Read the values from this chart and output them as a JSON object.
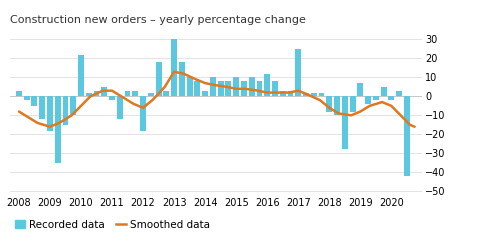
{
  "title": "Construction new orders – yearly percentage change",
  "bar_data": {
    "x": [
      2008.0,
      2008.25,
      2008.5,
      2008.75,
      2009.0,
      2009.25,
      2009.5,
      2009.75,
      2010.0,
      2010.25,
      2010.5,
      2010.75,
      2011.0,
      2011.25,
      2011.5,
      2011.75,
      2012.0,
      2012.25,
      2012.5,
      2012.75,
      2013.0,
      2013.25,
      2013.5,
      2013.75,
      2014.0,
      2014.25,
      2014.5,
      2014.75,
      2015.0,
      2015.25,
      2015.5,
      2015.75,
      2016.0,
      2016.25,
      2016.5,
      2016.75,
      2017.0,
      2017.25,
      2017.5,
      2017.75,
      2018.0,
      2018.25,
      2018.5,
      2018.75,
      2019.0,
      2019.25,
      2019.5,
      2019.75,
      2020.0,
      2020.25,
      2020.5
    ],
    "values": [
      3,
      -2,
      -5,
      -12,
      -18,
      -35,
      -15,
      -10,
      22,
      2,
      3,
      5,
      -2,
      -12,
      3,
      3,
      -18,
      2,
      18,
      3,
      30,
      18,
      10,
      8,
      3,
      10,
      8,
      8,
      10,
      8,
      10,
      8,
      12,
      8,
      3,
      3,
      25,
      2,
      2,
      2,
      -8,
      -10,
      -28,
      -8,
      7,
      -4,
      -2,
      5,
      -2,
      3,
      -42
    ]
  },
  "smooth_data": {
    "x": [
      2008.0,
      2008.3,
      2008.6,
      2009.0,
      2009.3,
      2009.7,
      2010.0,
      2010.3,
      2010.7,
      2011.0,
      2011.3,
      2011.7,
      2012.0,
      2012.3,
      2012.7,
      2013.0,
      2013.3,
      2013.7,
      2014.0,
      2014.3,
      2014.7,
      2015.0,
      2015.3,
      2015.7,
      2016.0,
      2016.3,
      2016.7,
      2017.0,
      2017.3,
      2017.7,
      2018.0,
      2018.3,
      2018.7,
      2019.0,
      2019.3,
      2019.7,
      2020.0,
      2020.3,
      2020.6,
      2020.75
    ],
    "values": [
      -8,
      -11,
      -14,
      -16,
      -14,
      -10,
      -5,
      0,
      3,
      3,
      0,
      -4,
      -6,
      -2,
      5,
      13,
      12,
      9,
      7,
      6,
      5,
      4,
      4,
      3,
      2,
      2,
      2,
      3,
      1,
      -2,
      -6,
      -9,
      -10,
      -8,
      -5,
      -3,
      -5,
      -10,
      -15,
      -16
    ]
  },
  "bar_color": "#5bc8e0",
  "smooth_color": "#e07820",
  "smooth_linewidth": 1.8,
  "ylim": [
    -52,
    35
  ],
  "yticks": [
    -50,
    -40,
    -30,
    -20,
    -10,
    0,
    10,
    20,
    30
  ],
  "xlim": [
    2007.7,
    2021.0
  ],
  "xticks": [
    2008,
    2009,
    2010,
    2011,
    2012,
    2013,
    2014,
    2015,
    2016,
    2017,
    2018,
    2019,
    2020
  ],
  "legend_labels": [
    "Recorded data",
    "Smoothed data"
  ],
  "title_fontsize": 8,
  "tick_fontsize": 7,
  "legend_fontsize": 7.5,
  "background_color": "#ffffff",
  "grid_color": "#d8d8d8"
}
